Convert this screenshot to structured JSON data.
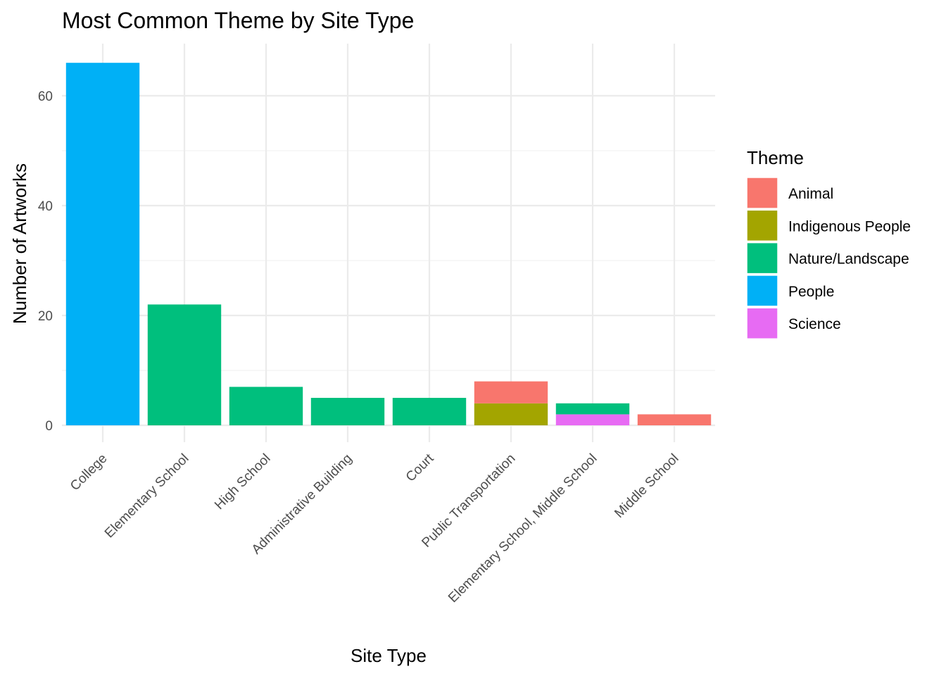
{
  "chart_data": {
    "type": "bar",
    "stacked": true,
    "title": "Most Common Theme by Site Type",
    "xlabel": "Site Type",
    "ylabel": "Number of Artworks",
    "ylim": [
      0,
      70
    ],
    "yticks": [
      0,
      20,
      40,
      60
    ],
    "grid": true,
    "legend": {
      "title": "Theme",
      "position": "right"
    },
    "categories": [
      "College",
      "Elementary School",
      "High School",
      "Administrative Building",
      "Court",
      "Public Transportation",
      "Elementary School, Middle School",
      "Middle School"
    ],
    "series": [
      {
        "name": "Animal",
        "color": "#F8766D",
        "values": [
          0,
          0,
          0,
          0,
          0,
          4,
          0,
          2
        ]
      },
      {
        "name": "Indigenous People",
        "color": "#A3A500",
        "values": [
          0,
          0,
          0,
          0,
          0,
          4,
          0,
          0
        ]
      },
      {
        "name": "Nature/Landscape",
        "color": "#00BF7D",
        "values": [
          0,
          22,
          7,
          5,
          5,
          0,
          2,
          0
        ]
      },
      {
        "name": "People",
        "color": "#00B0F6",
        "values": [
          66,
          0,
          0,
          0,
          0,
          0,
          0,
          0
        ]
      },
      {
        "name": "Science",
        "color": "#E76BF3",
        "values": [
          0,
          0,
          0,
          0,
          0,
          0,
          2,
          0
        ]
      }
    ]
  }
}
